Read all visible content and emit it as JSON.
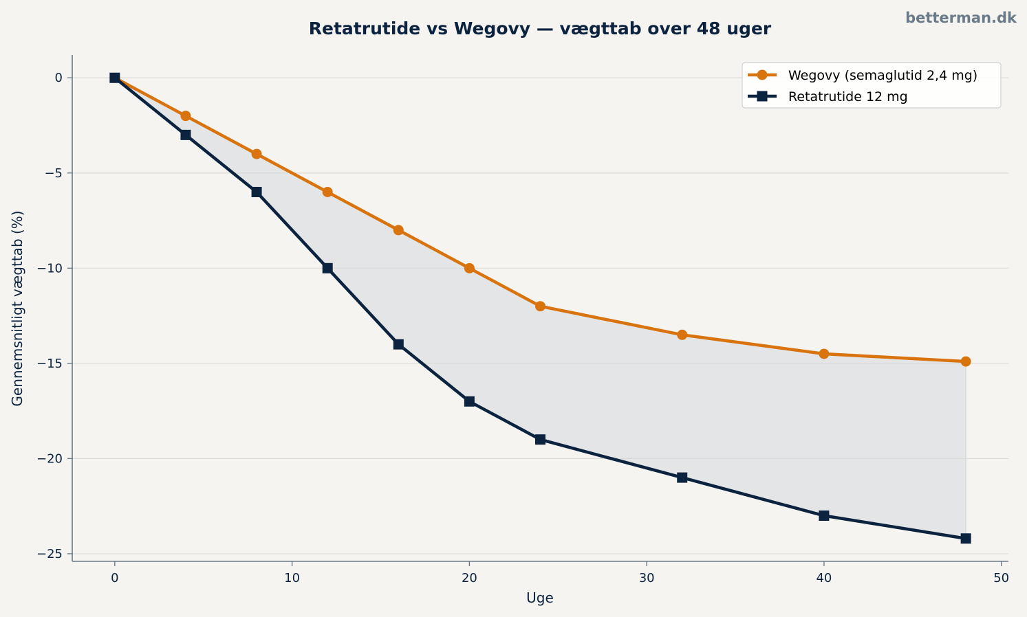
{
  "watermark": "betterman.dk",
  "chart_data": {
    "type": "line",
    "title": "Retatrutide vs Wegovy — vægttab over 48 uger",
    "xlabel": "Uge",
    "ylabel": "Gennemsnitligt vægttab (%)",
    "xlim": [
      -2.4,
      50.4
    ],
    "ylim": [
      -25.4,
      1.2
    ],
    "xticks": [
      0,
      10,
      20,
      30,
      40,
      50
    ],
    "yticks": [
      0,
      -5,
      -10,
      -15,
      -20,
      -25
    ],
    "xtick_labels": [
      "0",
      "10",
      "20",
      "30",
      "40",
      "50"
    ],
    "ytick_labels": [
      "0",
      "−5",
      "−10",
      "−15",
      "−20",
      "−25"
    ],
    "grid": "horizontal",
    "legend_position": "top-right",
    "fill_between": {
      "color": "#d5d9dc",
      "opacity": 0.55
    },
    "series": [
      {
        "name": "Wegovy (semaglutid 2,4 mg)",
        "color": "#d9730d",
        "marker": "circle",
        "x": [
          0,
          4,
          8,
          12,
          16,
          20,
          24,
          32,
          40,
          48
        ],
        "y": [
          0,
          -2,
          -4,
          -6,
          -8,
          -10,
          -12,
          -13.5,
          -14.5,
          -14.9
        ]
      },
      {
        "name": "Retatrutide 12 mg",
        "color": "#0c2340",
        "marker": "square",
        "x": [
          0,
          4,
          8,
          12,
          16,
          20,
          24,
          32,
          40,
          48
        ],
        "y": [
          0,
          -3,
          -6,
          -10,
          -14,
          -17,
          -19,
          -21,
          -23,
          -24.2
        ]
      }
    ]
  }
}
